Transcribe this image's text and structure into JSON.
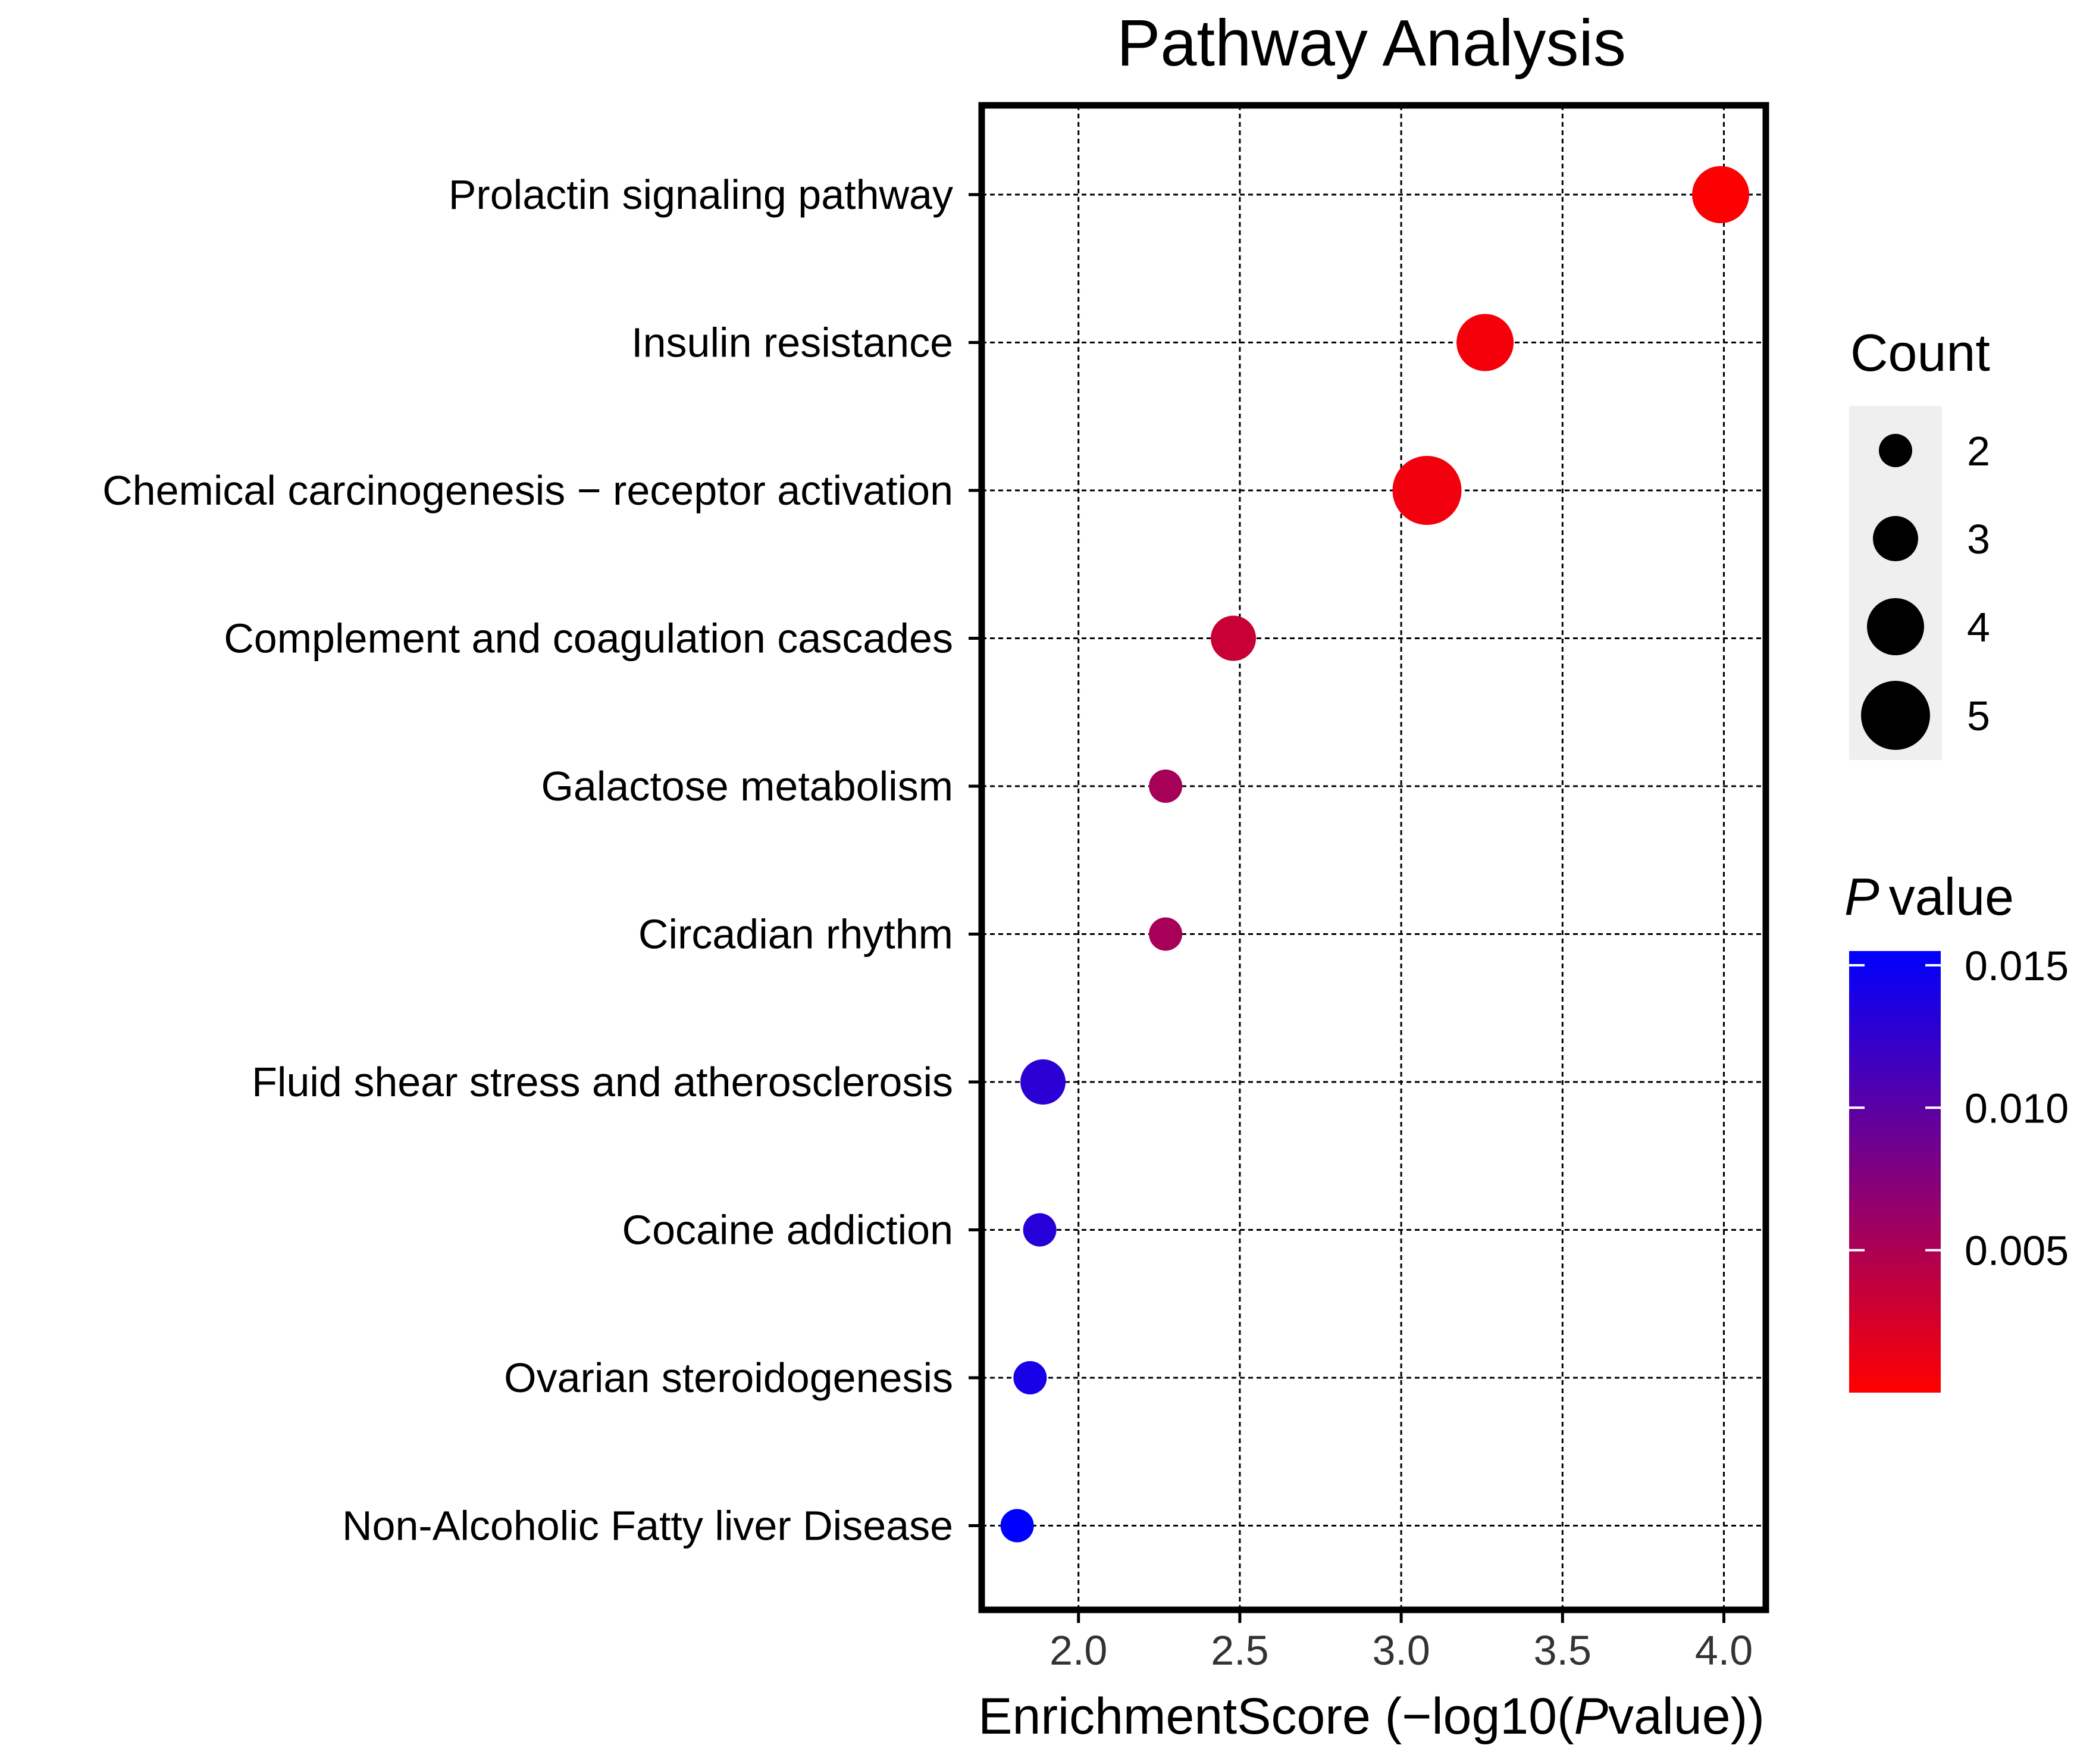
{
  "chart_data": {
    "type": "scatter",
    "title": "Pathway Analysis",
    "xlabel": {
      "prefix": "EnrichmentScore (−log10(",
      "italic": "P",
      "suffix": "value))"
    },
    "ylabel": "",
    "xlim": [
      1.7,
      4.13
    ],
    "xticks": [
      2.0,
      2.5,
      3.0,
      3.5,
      4.0
    ],
    "xtick_labels": [
      "2.0",
      "2.5",
      "3.0",
      "3.5",
      "4.0"
    ],
    "grid": true,
    "points": [
      {
        "pathway": "Prolactin signaling pathway",
        "x": 3.99,
        "count": 4,
        "pvalue": 0.0001
      },
      {
        "pathway": "Insulin resistance",
        "x": 3.26,
        "count": 4,
        "pvalue": 0.0006
      },
      {
        "pathway": "Chemical carcinogenesis − receptor activation",
        "x": 3.08,
        "count": 5,
        "pvalue": 0.0008
      },
      {
        "pathway": "Complement and coagulation cascades",
        "x": 2.48,
        "count": 3,
        "pvalue": 0.0033
      },
      {
        "pathway": "Galactose metabolism",
        "x": 2.27,
        "count": 2,
        "pvalue": 0.0054
      },
      {
        "pathway": "Circadian rhythm",
        "x": 2.27,
        "count": 2,
        "pvalue": 0.0054
      },
      {
        "pathway": "Fluid shear stress and atherosclerosis",
        "x": 1.89,
        "count": 3,
        "pvalue": 0.0129
      },
      {
        "pathway": "Cocaine addiction",
        "x": 1.88,
        "count": 2,
        "pvalue": 0.0132
      },
      {
        "pathway": "Ovarian steroidogenesis",
        "x": 1.85,
        "count": 2,
        "pvalue": 0.0141
      },
      {
        "pathway": "Non-Alcoholic Fatty liver Disease",
        "x": 1.81,
        "count": 2,
        "pvalue": 0.0155
      }
    ],
    "size_legend": {
      "title": "Count",
      "values": [
        2,
        3,
        4,
        5
      ],
      "labels": [
        "2",
        "3",
        "4",
        "5"
      ]
    },
    "color_legend": {
      "title_italic": "P",
      "title_rest": "value",
      "range": [
        0.0,
        0.0155
      ],
      "ticks": [
        0.015,
        0.01,
        0.005
      ],
      "tick_labels": [
        "0.015",
        "0.010",
        "0.005"
      ],
      "low_color": "#ff0000",
      "high_color": "#0000ff"
    }
  }
}
